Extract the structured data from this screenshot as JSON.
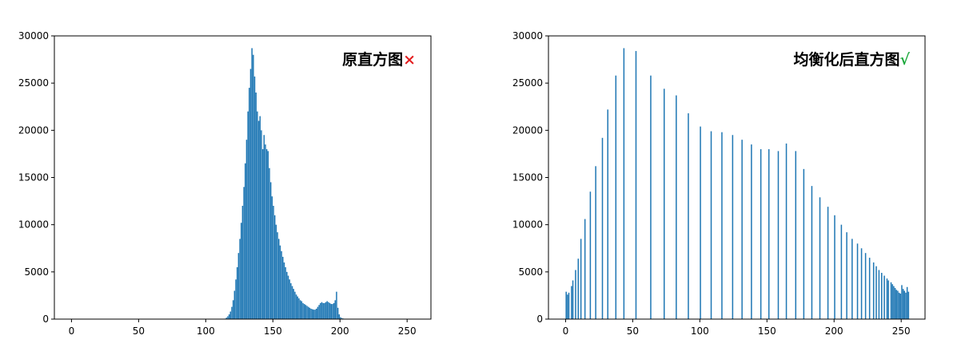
{
  "chart_data": [
    {
      "type": "bar",
      "title": "原直方图",
      "title_mark": "×",
      "title_mark_color": "#e31a1c",
      "bar_color": "#1f77b4",
      "xlim": [
        -12.75,
        267.75
      ],
      "ylim": [
        0,
        30000
      ],
      "xticks": [
        0,
        50,
        100,
        150,
        200,
        250
      ],
      "yticks": [
        0,
        5000,
        10000,
        15000,
        20000,
        25000,
        30000
      ],
      "x": [
        114,
        115,
        116,
        117,
        118,
        119,
        120,
        121,
        122,
        123,
        124,
        125,
        126,
        127,
        128,
        129,
        130,
        131,
        132,
        133,
        134,
        135,
        136,
        137,
        138,
        139,
        140,
        141,
        142,
        143,
        144,
        145,
        146,
        147,
        148,
        149,
        150,
        151,
        152,
        153,
        154,
        155,
        156,
        157,
        158,
        159,
        160,
        161,
        162,
        163,
        164,
        165,
        166,
        167,
        168,
        169,
        170,
        171,
        172,
        173,
        174,
        175,
        176,
        177,
        178,
        179,
        180,
        181,
        182,
        183,
        184,
        185,
        186,
        187,
        188,
        189,
        190,
        191,
        192,
        193,
        194,
        195,
        196,
        197,
        198,
        199,
        200,
        201,
        202,
        203,
        204,
        205,
        206
      ],
      "values": [
        50,
        150,
        300,
        500,
        800,
        1300,
        2000,
        3000,
        4200,
        5500,
        7000,
        8500,
        10200,
        12000,
        14000,
        16500,
        19000,
        22000,
        24500,
        26500,
        28700,
        28000,
        25700,
        24000,
        22000,
        21000,
        21500,
        20000,
        18000,
        19500,
        18500,
        18000,
        17800,
        16000,
        14500,
        13000,
        12000,
        11000,
        10000,
        9200,
        8500,
        7800,
        7200,
        6600,
        6000,
        5500,
        5000,
        4600,
        4200,
        3800,
        3500,
        3200,
        2900,
        2600,
        2400,
        2200,
        2000,
        1900,
        1700,
        1600,
        1500,
        1400,
        1300,
        1200,
        1100,
        1050,
        1000,
        1000,
        1100,
        1300,
        1500,
        1700,
        1800,
        1700,
        1700,
        1800,
        1900,
        1800,
        1700,
        1600,
        1600,
        1700,
        2000,
        2900,
        1200,
        500,
        200,
        100,
        60,
        40,
        30,
        20,
        10
      ]
    },
    {
      "type": "bar",
      "title": "均衡化后直方图",
      "title_mark": "√",
      "title_mark_color": "#1aa83a",
      "bar_color": "#1f77b4",
      "xlim": [
        -12.75,
        267.75
      ],
      "ylim": [
        0,
        30000
      ],
      "xticks": [
        0,
        50,
        100,
        150,
        200,
        250
      ],
      "yticks": [
        0,
        5000,
        10000,
        15000,
        20000,
        25000,
        30000
      ],
      "x": [
        0,
        1,
        2,
        4,
        5,
        7,
        9,
        11,
        14,
        18,
        22,
        27,
        31,
        37,
        43,
        52,
        63,
        73,
        82,
        91,
        100,
        108,
        116,
        124,
        131,
        138,
        145,
        151,
        158,
        164,
        171,
        177,
        183,
        189,
        195,
        200,
        205,
        209,
        213,
        217,
        220,
        223,
        226,
        229,
        231,
        233,
        235,
        237,
        239,
        240,
        242,
        243,
        244,
        245,
        246,
        247,
        248,
        249,
        250,
        251,
        252,
        253,
        254,
        255
      ],
      "values": [
        2900,
        2600,
        2800,
        3500,
        4100,
        5200,
        6400,
        8500,
        10600,
        13500,
        16200,
        19200,
        22200,
        25800,
        28700,
        28400,
        25800,
        24400,
        23700,
        21800,
        20400,
        19900,
        19800,
        19500,
        19000,
        18500,
        18000,
        18000,
        17800,
        18600,
        17800,
        15900,
        14100,
        12900,
        11900,
        11000,
        10000,
        9200,
        8500,
        8000,
        7500,
        7000,
        6500,
        6000,
        5600,
        5200,
        4900,
        4600,
        4300,
        4100,
        3900,
        3700,
        3500,
        3300,
        3100,
        3000,
        2800,
        2700,
        3600,
        3200,
        3000,
        2800,
        3400,
        2900
      ]
    }
  ]
}
